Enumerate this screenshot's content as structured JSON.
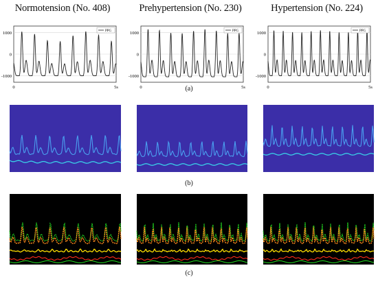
{
  "figure": {
    "columns": [
      {
        "title": "Normotension (No. 408)"
      },
      {
        "title": "Prehypertension (No. 230)"
      },
      {
        "title": "Hypertension (No. 224)"
      }
    ],
    "panel_labels": {
      "a": "(a)",
      "b": "(b)",
      "c": "(c)"
    }
  },
  "chart_data": [
    {
      "type": "line",
      "title": "Normotension (No. 408)",
      "legend": "PPG",
      "legend_position": "top-right",
      "xlim": [
        0,
        5
      ],
      "x_ticks": [
        "0",
        "5s"
      ],
      "ylim": [
        -1300,
        1300
      ],
      "y_ticks": [
        "1000",
        "0",
        "-1000"
      ],
      "grid": true,
      "series": [
        {
          "name": "PPG",
          "beats": 8,
          "peak_range": [
            550,
            1050
          ],
          "trough": -1000,
          "duration_s": 5
        }
      ]
    },
    {
      "type": "line",
      "title": "Prehypertension (No. 230)",
      "legend": "PPG",
      "legend_position": "top-right",
      "xlim": [
        0,
        5
      ],
      "x_ticks": [
        "0",
        "5s"
      ],
      "ylim": [
        -1300,
        1300
      ],
      "y_ticks": [
        "1000",
        "0",
        "-1000"
      ],
      "grid": true,
      "series": [
        {
          "name": "PPG",
          "beats": 9,
          "peak_range": [
            950,
            1150
          ],
          "trough": -1050,
          "duration_s": 5
        }
      ]
    },
    {
      "type": "line",
      "title": "Hypertension (No. 224)",
      "legend": "PPG",
      "legend_position": "top-right",
      "xlim": [
        0,
        5
      ],
      "x_ticks": [
        "0",
        "5s"
      ],
      "ylim": [
        -1300,
        1300
      ],
      "y_ticks": [
        "1000",
        "0",
        "-1000"
      ],
      "grid": true,
      "series": [
        {
          "name": "PPG",
          "beats": 11,
          "peak_range": [
            1000,
            1100
          ],
          "trough": -1000,
          "duration_s": 5
        }
      ]
    }
  ],
  "row_b": {
    "background": "#3b2ea8",
    "trace_color": "#4aa0f0",
    "baseline_color": "#39d0e8",
    "beats": [
      8,
      10,
      11
    ]
  },
  "row_c": {
    "background": "#000000",
    "colors": {
      "green": "#22e022",
      "orange": "#ff8a1a",
      "red": "#ff2a1a",
      "yellow": "#ffe000"
    },
    "beats": [
      8,
      13,
      13
    ]
  }
}
